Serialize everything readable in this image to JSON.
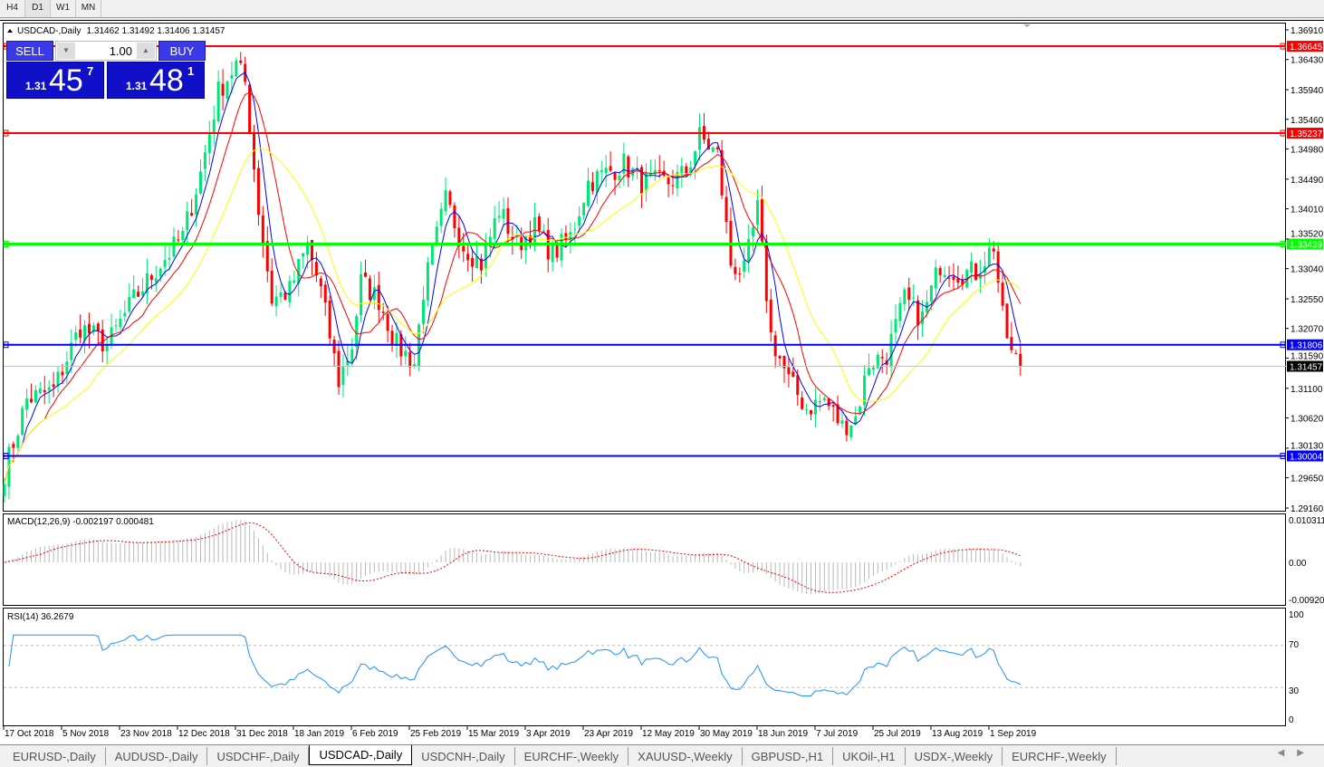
{
  "timeframes": [
    {
      "label": "H4",
      "active": false
    },
    {
      "label": "D1",
      "active": true
    },
    {
      "label": "W1",
      "active": false
    },
    {
      "label": "MN",
      "active": false
    }
  ],
  "chart": {
    "symbol": "USDCAD-,Daily",
    "ohlc": "1.31462 1.31492 1.31406 1.31457",
    "trade_panel": {
      "sell_label": "SELL",
      "buy_label": "BUY",
      "lot": "1.00",
      "sell_price": {
        "small": "1.31",
        "big": "45",
        "exp": "7"
      },
      "buy_price": {
        "small": "1.31",
        "big": "48",
        "exp": "1"
      }
    },
    "current_price": "1.31457",
    "levels": [
      {
        "price": 1.36645,
        "label": "1.36645",
        "color": "#ff0000"
      },
      {
        "price": 1.35237,
        "label": "1.35237",
        "color": "#ff0000"
      },
      {
        "price": 1.33439,
        "label": "1.33439",
        "color": "#00ff00"
      },
      {
        "price": 1.31806,
        "label": "1.31806",
        "color": "#0000ff"
      },
      {
        "price": 1.30004,
        "label": "1.30004",
        "color": "#0000ff"
      }
    ],
    "price_axis": [
      "1.36910",
      "1.36430",
      "1.35940",
      "1.35460",
      "1.34980",
      "1.34490",
      "1.34010",
      "1.33520",
      "1.33040",
      "1.32550",
      "1.32070",
      "1.31590",
      "1.31100",
      "1.30620",
      "1.30130",
      "1.29650",
      "1.29160"
    ],
    "date_axis": [
      "17 Oct 2018",
      "5 Nov 2018",
      "23 Nov 2018",
      "12 Dec 2018",
      "31 Dec 2018",
      "18 Jan 2019",
      "6 Feb 2019",
      "25 Feb 2019",
      "15 Mar 2019",
      "3 Apr 2019",
      "23 Apr 2019",
      "12 May 2019",
      "30 May 2019",
      "18 Jun 2019",
      "7 Jul 2019",
      "25 Jul 2019",
      "13 Aug 2019",
      "1 Sep 2019"
    ],
    "colors": {
      "bull": "#00e676",
      "bear": "#ff0000",
      "ma_fast": "#0000ff",
      "ma_mid": "#ff0000",
      "ma_slow": "#ffff00"
    }
  },
  "macd": {
    "label": "MACD(12,26,9) -0.002197 0.000481",
    "axis": [
      "0.010311",
      "0.00",
      "-0.009203"
    ]
  },
  "rsi": {
    "label": "RSI(14) 36.2679",
    "axis": [
      "100",
      "70",
      "30",
      "0"
    ]
  },
  "chart_data": {
    "type": "candlestick",
    "close_anchors": [
      [
        0,
        1.2975
      ],
      [
        5,
        1.3092
      ],
      [
        11,
        1.3107
      ],
      [
        17,
        1.321
      ],
      [
        23,
        1.318
      ],
      [
        29,
        1.3254
      ],
      [
        35,
        1.3312
      ],
      [
        40,
        1.3356
      ],
      [
        44,
        1.3459
      ],
      [
        48,
        1.3591
      ],
      [
        52,
        1.3635
      ],
      [
        54,
        1.3606
      ],
      [
        57,
        1.34
      ],
      [
        60,
        1.3254
      ],
      [
        64,
        1.3268
      ],
      [
        68,
        1.3342
      ],
      [
        71,
        1.3268
      ],
      [
        75,
        1.3122
      ],
      [
        78,
        1.318
      ],
      [
        80,
        1.3283
      ],
      [
        84,
        1.3254
      ],
      [
        88,
        1.318
      ],
      [
        92,
        1.3151
      ],
      [
        94,
        1.3268
      ],
      [
        99,
        1.3415
      ],
      [
        103,
        1.3342
      ],
      [
        107,
        1.3312
      ],
      [
        111,
        1.34
      ],
      [
        115,
        1.3342
      ],
      [
        119,
        1.3371
      ],
      [
        123,
        1.3327
      ],
      [
        127,
        1.3356
      ],
      [
        131,
        1.3444
      ],
      [
        135,
        1.3459
      ],
      [
        139,
        1.3474
      ],
      [
        143,
        1.3444
      ],
      [
        149,
        1.3444
      ],
      [
        153,
        1.3459
      ],
      [
        156,
        1.3518
      ],
      [
        160,
        1.3488
      ],
      [
        163,
        1.3312
      ],
      [
        166,
        1.3298
      ],
      [
        169,
        1.34
      ],
      [
        172,
        1.3195
      ],
      [
        176,
        1.3122
      ],
      [
        180,
        1.3078
      ],
      [
        184,
        1.3092
      ],
      [
        188,
        1.3048
      ],
      [
        191,
        1.3063
      ],
      [
        194,
        1.3151
      ],
      [
        198,
        1.3165
      ],
      [
        202,
        1.3254
      ],
      [
        206,
        1.3224
      ],
      [
        210,
        1.3312
      ],
      [
        214,
        1.3298
      ],
      [
        218,
        1.3298
      ],
      [
        222,
        1.3342
      ],
      [
        224,
        1.3224
      ],
      [
        226,
        1.3165
      ],
      [
        228,
        1.3146
      ]
    ],
    "ylim": [
      1.2916,
      1.3691
    ]
  },
  "tabs": [
    {
      "label": "EURUSD-,Daily"
    },
    {
      "label": "AUDUSD-,Daily"
    },
    {
      "label": "USDCHF-,Daily"
    },
    {
      "label": "USDCAD-,Daily",
      "active": true
    },
    {
      "label": "USDCNH-,Daily"
    },
    {
      "label": "EURCHF-,Weekly"
    },
    {
      "label": "XAUUSD-,Weekly"
    },
    {
      "label": "GBPUSD-,H1"
    },
    {
      "label": "UKOil-,H1"
    },
    {
      "label": "USDX-,Weekly"
    },
    {
      "label": "EURCHF-,Weekly"
    }
  ],
  "tab_scroll": {
    "left": "◀",
    "right": "▶"
  }
}
